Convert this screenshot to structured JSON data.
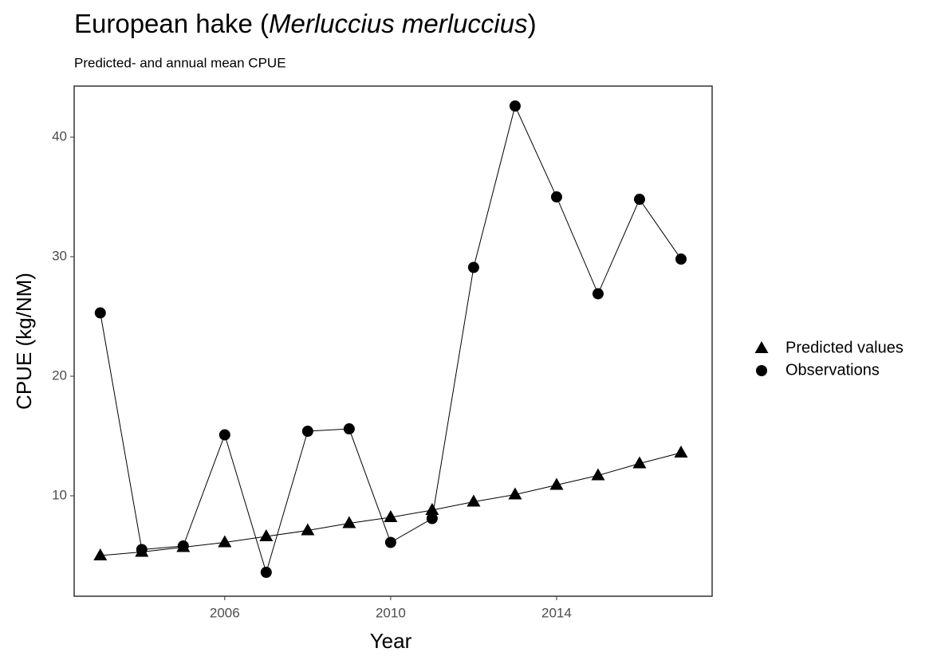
{
  "chart_data": {
    "type": "line",
    "title": "European hake (Merluccius merluccius)",
    "subtitle": "Predicted- and annual mean CPUE",
    "x_label": "Year",
    "y_label": "CPUE (kg/NM)",
    "x": [
      2003,
      2004,
      2005,
      2006,
      2007,
      2008,
      2009,
      2010,
      2011,
      2012,
      2013,
      2014,
      2015,
      2016,
      2017
    ],
    "series": [
      {
        "name": "Predicted values",
        "color": "#000000",
        "marker": "triangle",
        "values": [
          5.0,
          5.3,
          5.7,
          6.1,
          6.6,
          7.1,
          7.7,
          8.2,
          8.8,
          9.5,
          10.1,
          10.9,
          11.7,
          12.7,
          13.6
        ]
      },
      {
        "name": "Observations",
        "color": "#000000",
        "marker": "circle",
        "values": [
          25.3,
          5.5,
          5.8,
          15.1,
          3.6,
          15.4,
          15.6,
          6.1,
          8.1,
          29.1,
          42.6,
          35.0,
          26.9,
          34.8,
          29.8
        ]
      }
    ],
    "xlim": [
      2002.37,
      2017.75
    ],
    "xticks": [
      2006,
      2010,
      2014
    ],
    "ylim": [
      1.6,
      44.27
    ],
    "yticks": [
      10,
      20,
      30,
      40
    ],
    "grid": false,
    "legend": "right"
  }
}
